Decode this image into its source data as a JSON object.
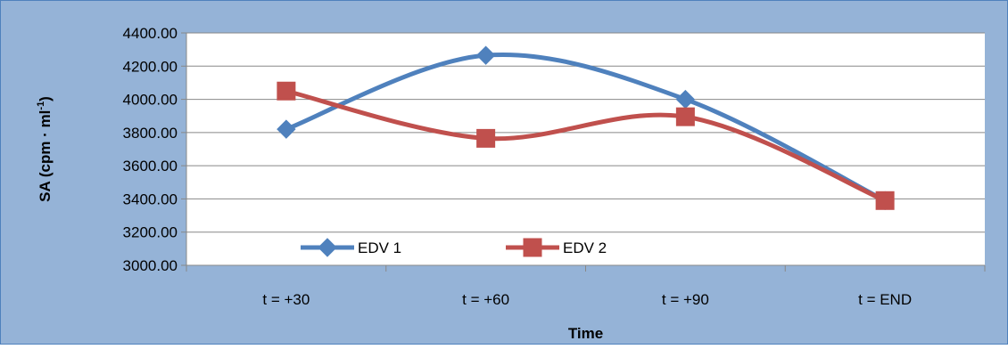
{
  "chart_data": {
    "type": "line",
    "categories": [
      "t = +30",
      "t = +60",
      "t = +90",
      "t = END"
    ],
    "series": [
      {
        "name": "EDV 1",
        "values": [
          3820,
          4265,
          4000,
          3390
        ],
        "color": "#4F81BD",
        "marker": "diamond"
      },
      {
        "name": "EDV 2",
        "values": [
          4050,
          3765,
          3895,
          3390
        ],
        "color": "#C0504D",
        "marker": "square"
      }
    ],
    "title": "",
    "xlabel": "Time",
    "ylabel_main": "SA (cpm · ml",
    "ylabel_sup": "-1",
    "ylabel_close": ")",
    "ylim": [
      3000,
      4400
    ],
    "y_ticks": [
      "3000.00",
      "3200.00",
      "3400.00",
      "3600.00",
      "3800.00",
      "4000.00",
      "4200.00",
      "4400.00"
    ],
    "grid": "horizontal",
    "legend_position": "inside-bottom-left",
    "smooth": true,
    "colors": {
      "chart_background": "#95B3D7",
      "plot_background": "#FFFFFF",
      "gridline": "#888888",
      "border": "#4F81BD"
    }
  }
}
